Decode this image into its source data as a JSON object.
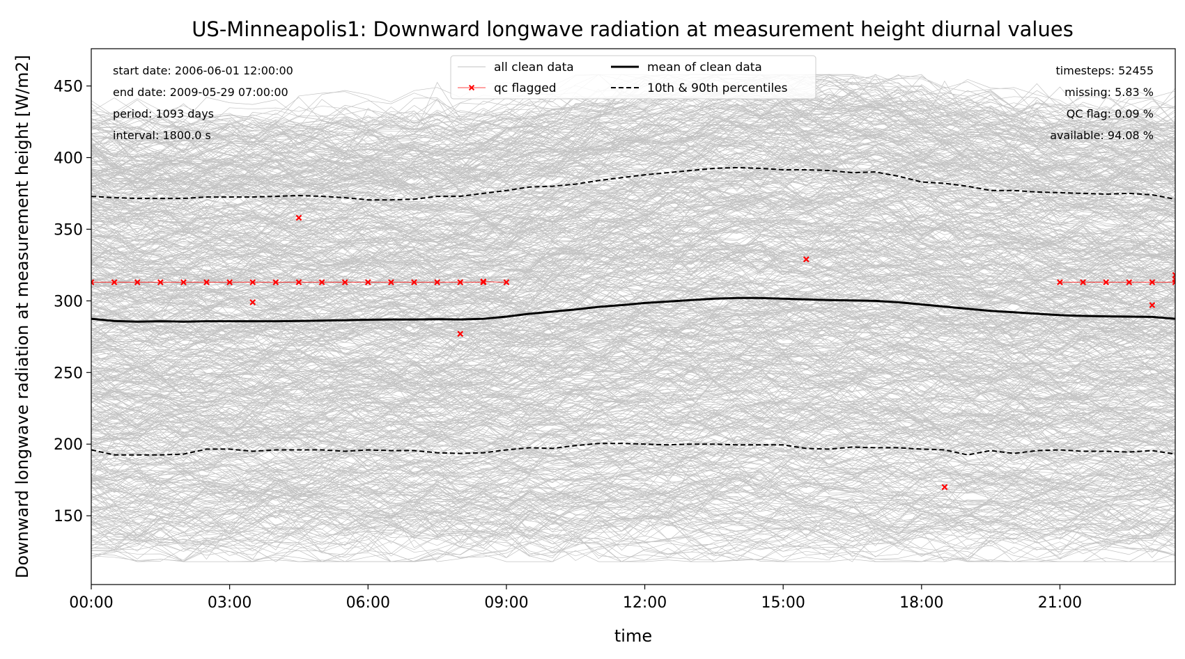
{
  "chart_data": {
    "type": "line",
    "title": "US-Minneapolis1: Downward longwave radiation at measurement height diurnal values",
    "xlabel": "time",
    "ylabel": "Downward longwave radiation at measurement height [W/m2]",
    "xlim_hours": [
      0,
      23.5
    ],
    "ylim": [
      102,
      476
    ],
    "x_ticks": [
      {
        "hour": 0,
        "label": "00:00"
      },
      {
        "hour": 3,
        "label": "03:00"
      },
      {
        "hour": 6,
        "label": "06:00"
      },
      {
        "hour": 9,
        "label": "09:00"
      },
      {
        "hour": 12,
        "label": "12:00"
      },
      {
        "hour": 15,
        "label": "15:00"
      },
      {
        "hour": 18,
        "label": "18:00"
      },
      {
        "hour": 21,
        "label": "21:00"
      }
    ],
    "y_ticks": [
      150,
      200,
      250,
      300,
      350,
      400,
      450
    ],
    "grid": false,
    "legend_position": "top-center",
    "legend": [
      {
        "label": "all clean data",
        "style": "thin-gray-line",
        "color": "#c0c0c0"
      },
      {
        "label": "qc flagged",
        "style": "red-x-marker",
        "color": "#ff0000"
      },
      {
        "label": "mean of clean data",
        "style": "thick-black-line",
        "color": "#000000"
      },
      {
        "label": "10th & 90th percentiles",
        "style": "dashed-black-line",
        "color": "#000000"
      }
    ],
    "info_left": [
      "start date: 2006-06-01 12:00:00",
      "end date: 2009-05-29 07:00:00",
      "period: 1093 days",
      "interval: 1800.0 s"
    ],
    "info_right": [
      "timesteps: 52455",
      "missing: 5.83 %",
      "QC flag: 0.09 %",
      "available: 94.08 %"
    ],
    "series": [
      {
        "name": "mean of clean data",
        "x": [
          0,
          0.5,
          1,
          1.5,
          2,
          2.5,
          3,
          3.5,
          4,
          4.5,
          5,
          5.5,
          6,
          6.5,
          7,
          7.5,
          8,
          8.5,
          9,
          9.5,
          10,
          10.5,
          11,
          11.5,
          12,
          12.5,
          13,
          13.5,
          14,
          14.5,
          15,
          15.5,
          16,
          16.5,
          17,
          17.5,
          18,
          18.5,
          19,
          19.5,
          20,
          20.5,
          21,
          21.5,
          22,
          22.5,
          23,
          23.5
        ],
        "y": [
          287.5,
          286,
          285.5,
          285.8,
          285.5,
          285.8,
          285.8,
          285.8,
          285.8,
          286,
          286.2,
          286.5,
          286.8,
          287,
          287,
          287.2,
          287,
          287.5,
          289,
          291,
          292.5,
          294,
          295.8,
          297,
          298.5,
          299.5,
          300.5,
          301.5,
          302,
          302,
          301.5,
          301,
          300.5,
          300.3,
          300,
          299,
          297.5,
          296,
          294.5,
          293,
          292,
          291,
          290,
          289.5,
          289.2,
          289,
          288.8,
          287.5
        ]
      },
      {
        "name": "10th percentile",
        "x": [
          0,
          0.5,
          1,
          1.5,
          2,
          2.5,
          3,
          3.5,
          4,
          4.5,
          5,
          5.5,
          6,
          6.5,
          7,
          7.5,
          8,
          8.5,
          9,
          9.5,
          10,
          10.5,
          11,
          11.5,
          12,
          12.5,
          13,
          13.5,
          14,
          14.5,
          15,
          15.5,
          16,
          16.5,
          17,
          17.5,
          18,
          18.5,
          19,
          19.5,
          20,
          20.5,
          21,
          21.5,
          22,
          22.5,
          23,
          23.5
        ],
        "y": [
          196,
          192.5,
          192.5,
          192.5,
          193,
          196.5,
          196.5,
          195,
          196,
          196,
          196,
          195,
          196,
          195.5,
          195.5,
          194,
          193.5,
          194,
          196,
          197.5,
          197,
          199,
          200.5,
          200.5,
          200,
          199.5,
          200,
          200,
          199.5,
          199.5,
          199.5,
          197,
          196.5,
          198,
          197.5,
          197.5,
          196.5,
          196,
          192.5,
          195.5,
          193.5,
          195.5,
          196,
          195,
          195,
          194.5,
          195.5,
          193
        ]
      },
      {
        "name": "90th percentile",
        "x": [
          0,
          0.5,
          1,
          1.5,
          2,
          2.5,
          3,
          3.5,
          4,
          4.5,
          5,
          5.5,
          6,
          6.5,
          7,
          7.5,
          8,
          8.5,
          9,
          9.5,
          10,
          10.5,
          11,
          11.5,
          12,
          12.5,
          13,
          13.5,
          14,
          14.5,
          15,
          15.5,
          16,
          16.5,
          17,
          17.5,
          18,
          18.5,
          19,
          19.5,
          20,
          20.5,
          21,
          21.5,
          22,
          22.5,
          23,
          23.5
        ],
        "y": [
          373,
          372,
          371.5,
          371.5,
          371.5,
          372.5,
          372.5,
          372.5,
          373,
          373.5,
          373,
          372,
          370.5,
          370.5,
          371,
          373,
          373,
          375,
          377,
          379.5,
          380,
          381.5,
          384,
          386,
          388,
          389.5,
          391,
          392.5,
          393,
          392.5,
          391.5,
          391.5,
          391,
          389.5,
          390,
          387,
          383,
          382,
          380,
          377,
          377,
          376,
          375.5,
          375,
          374.5,
          375,
          374,
          371
        ]
      },
      {
        "name": "qc flagged",
        "x": [
          0,
          0.5,
          1,
          1.5,
          2,
          2.5,
          3,
          3.5,
          3.5,
          4,
          4.5,
          4.5,
          5,
          5.5,
          6,
          6.5,
          7,
          7.5,
          8,
          8,
          8.5,
          8.5,
          9,
          15.5,
          18.5,
          21,
          21.5,
          22,
          22.5,
          23,
          23,
          23.5,
          23.5,
          23.5
        ],
        "y": [
          313,
          313,
          313,
          313,
          313,
          313,
          313,
          313,
          299,
          313,
          313,
          358,
          313,
          313,
          313,
          313,
          313,
          313,
          313,
          277,
          313,
          313.5,
          313,
          329,
          170,
          313,
          313,
          313,
          313,
          313,
          297,
          313,
          315,
          318
        ]
      }
    ],
    "clean_data_note": "hundreds of thin light-gray daily traces spanning roughly 120-455 W/m2"
  }
}
